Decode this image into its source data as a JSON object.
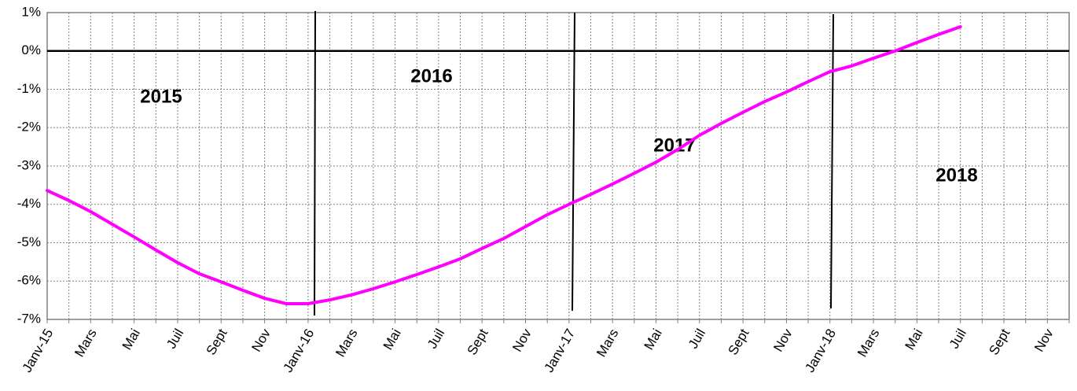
{
  "chart_data": {
    "type": "line",
    "categories": [
      "Janv-15",
      null,
      "Mars",
      null,
      "Mai",
      null,
      "Juil",
      null,
      "Sept",
      null,
      "Nov",
      null,
      "Janv-16",
      null,
      "Mars",
      null,
      "Mai",
      null,
      "Juil",
      null,
      "Sept",
      null,
      "Nov",
      null,
      "Janv-17",
      null,
      "Mars",
      null,
      "Mai",
      null,
      "Juil",
      null,
      "Sept",
      null,
      "Nov",
      null,
      "Janv-18",
      null,
      "Mars",
      null,
      "Mai",
      null,
      "Juil",
      null,
      "Sept",
      null,
      "Nov",
      null
    ],
    "series": [
      {
        "color": "#ff00ff",
        "values": [
          -3.64,
          -3.9,
          -4.19,
          -4.52,
          -4.85,
          -5.19,
          -5.52,
          -5.81,
          -6.02,
          -6.24,
          -6.45,
          -6.59,
          -6.59,
          -6.49,
          -6.36,
          -6.2,
          -6.02,
          -5.83,
          -5.63,
          -5.42,
          -5.15,
          -4.89,
          -4.58,
          -4.27,
          -4.0,
          -3.74,
          -3.47,
          -3.19,
          -2.9,
          -2.57,
          -2.2,
          -1.89,
          -1.6,
          -1.32,
          -1.07,
          -0.8,
          -0.54,
          -0.39,
          -0.19,
          0.0,
          0.22,
          0.43,
          0.63,
          null,
          null,
          null,
          null,
          null
        ]
      }
    ],
    "ylim": [
      -7,
      1
    ],
    "yticks": [
      {
        "value": 1,
        "label": "1%"
      },
      {
        "value": 0,
        "label": "0%"
      },
      {
        "value": -1,
        "label": "-1%"
      },
      {
        "value": -2,
        "label": "-2%"
      },
      {
        "value": -3,
        "label": "-3%"
      },
      {
        "value": -4,
        "label": "-4%"
      },
      {
        "value": -5,
        "label": "-5%"
      },
      {
        "value": -6,
        "label": "-6%"
      },
      {
        "value": -7,
        "label": "-7%"
      }
    ],
    "grid": true,
    "annotations": [
      "2015",
      "2016",
      "2017",
      "2018"
    ]
  }
}
